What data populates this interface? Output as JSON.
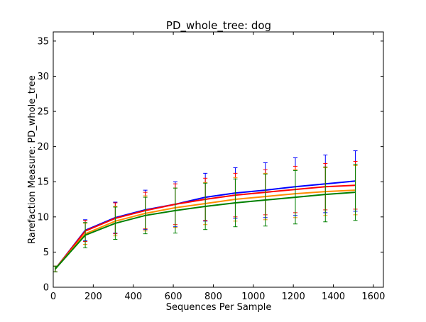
{
  "chart_data": {
    "type": "line",
    "title": "PD_whole_tree: dog",
    "xlabel": "Sequences Per Sample",
    "ylabel": "Rarefaction Measure: PD_whole_tree",
    "xlim": [
      0,
      1650
    ],
    "ylim": [
      0,
      36.3
    ],
    "xticks": [
      0,
      200,
      400,
      600,
      800,
      1000,
      1200,
      1400,
      1600
    ],
    "yticks": [
      0,
      5,
      10,
      15,
      20,
      25,
      30,
      35
    ],
    "grid": false,
    "legend": "none",
    "x": [
      10,
      160,
      310,
      460,
      610,
      760,
      910,
      1060,
      1210,
      1360,
      1510
    ],
    "series": [
      {
        "color": "#0000ff",
        "values": [
          2.6,
          8.1,
          9.9,
          11.0,
          11.8,
          12.8,
          13.4,
          13.8,
          14.3,
          14.7,
          15.1
        ],
        "errors": [
          0.4,
          1.5,
          2.2,
          2.8,
          3.2,
          3.4,
          3.6,
          3.9,
          4.1,
          4.1,
          4.3
        ]
      },
      {
        "color": "#ff0000",
        "values": [
          2.6,
          8.0,
          9.8,
          10.9,
          11.8,
          12.5,
          13.1,
          13.5,
          13.9,
          14.3,
          14.5
        ],
        "errors": [
          0.4,
          1.5,
          2.2,
          2.6,
          2.9,
          3.0,
          3.1,
          3.2,
          3.3,
          3.3,
          3.4
        ]
      },
      {
        "color": "#ff8c00",
        "values": [
          2.6,
          7.6,
          9.4,
          10.5,
          11.3,
          11.9,
          12.5,
          12.9,
          13.3,
          13.6,
          13.8
        ],
        "errors": [
          0.4,
          1.5,
          2.1,
          2.5,
          2.8,
          3.0,
          3.1,
          3.3,
          3.4,
          3.4,
          3.5
        ]
      },
      {
        "color": "#008000",
        "values": [
          2.6,
          7.4,
          9.1,
          10.2,
          10.9,
          11.5,
          12.0,
          12.4,
          12.8,
          13.2,
          13.5
        ],
        "errors": [
          0.4,
          1.8,
          2.3,
          2.6,
          3.2,
          3.3,
          3.4,
          3.7,
          3.8,
          3.9,
          4.0
        ]
      }
    ]
  }
}
